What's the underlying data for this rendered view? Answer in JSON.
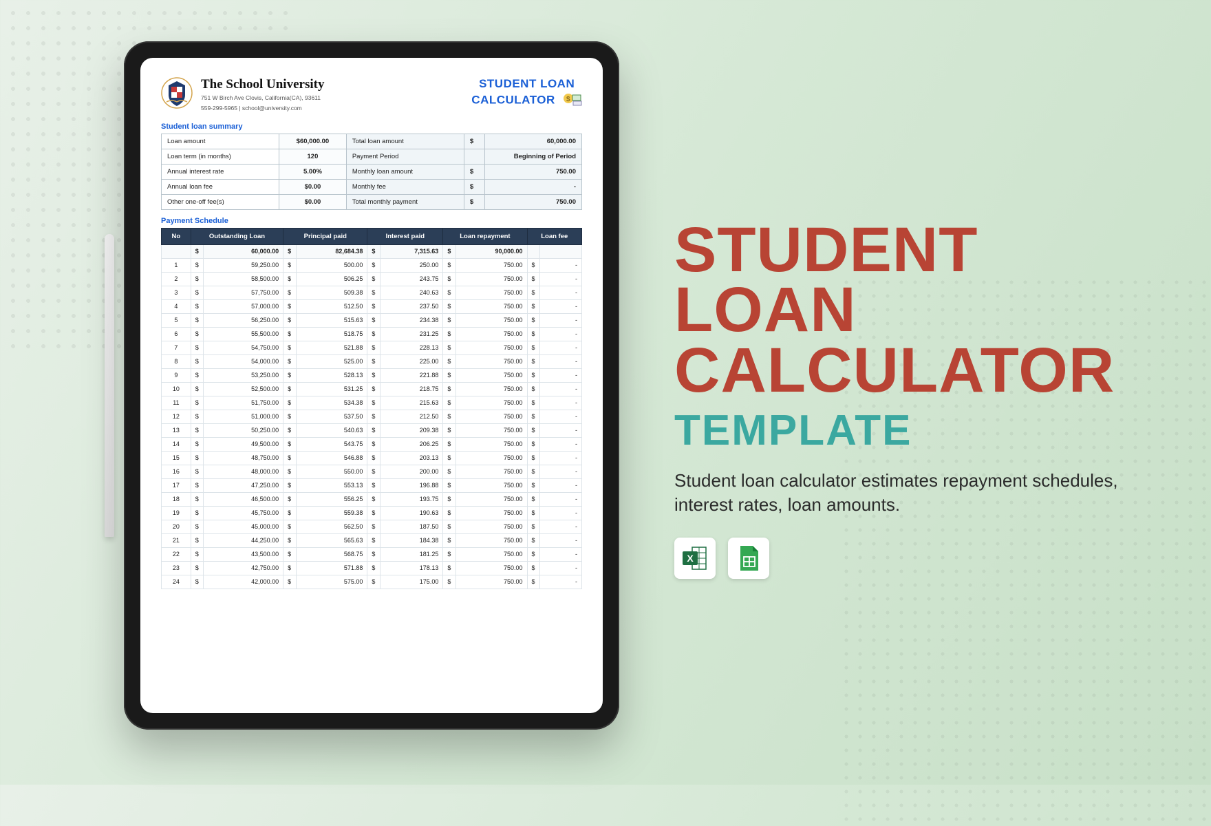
{
  "marketing": {
    "title_line1": "STUDENT LOAN",
    "title_line2": "CALCULATOR",
    "subtitle": "TEMPLATE",
    "description": "Student loan calculator estimates repayment schedules, interest rates, loan amounts.",
    "title_color": "#b84434",
    "subtitle_color": "#3ba8a0",
    "desc_color": "#2b2b2b",
    "icons": [
      "excel",
      "google-sheets"
    ]
  },
  "document": {
    "school_name": "The School University",
    "address": "751 W Birch Ave Clovis, California(CA), 93611",
    "contact": "559-299-5965 | school@university.com",
    "title": "STUDENT LOAN CALCULATOR",
    "sections": {
      "summary_title": "Student loan summary",
      "schedule_title": "Payment Schedule"
    },
    "summary": {
      "left": [
        {
          "label": "Loan amount",
          "value": "$60,000.00"
        },
        {
          "label": "Loan term (in months)",
          "value": "120"
        },
        {
          "label": "Annual interest rate",
          "value": "5.00%"
        },
        {
          "label": "Annual loan fee",
          "value": "$0.00"
        },
        {
          "label": "Other one-off fee(s)",
          "value": "$0.00"
        }
      ],
      "right": [
        {
          "label": "Total loan amount",
          "cur": "$",
          "value": "60,000.00"
        },
        {
          "label": "Payment Period",
          "cur": "",
          "value": "Beginning of Period"
        },
        {
          "label": "Monthly loan amount",
          "cur": "$",
          "value": "750.00"
        },
        {
          "label": "Monthly fee",
          "cur": "$",
          "value": "-"
        },
        {
          "label": "Total monthly payment",
          "cur": "$",
          "value": "750.00"
        }
      ]
    },
    "schedule": {
      "columns": [
        "No",
        "Outstanding Loan",
        "Principal paid",
        "Interest paid",
        "Loan repayment",
        "Loan fee"
      ],
      "col_widths_pct": [
        7,
        22,
        20,
        18,
        20,
        13
      ],
      "header_bg": "#2b3e57",
      "header_fg": "#ffffff",
      "totals": {
        "outstanding": "60,000.00",
        "principal": "82,684.38",
        "interest": "7,315.63",
        "repayment": "90,000.00",
        "fee": ""
      },
      "rows": [
        {
          "no": 1,
          "out": "59,250.00",
          "prin": "500.00",
          "int": "250.00",
          "rep": "750.00",
          "fee": "-"
        },
        {
          "no": 2,
          "out": "58,500.00",
          "prin": "506.25",
          "int": "243.75",
          "rep": "750.00",
          "fee": "-"
        },
        {
          "no": 3,
          "out": "57,750.00",
          "prin": "509.38",
          "int": "240.63",
          "rep": "750.00",
          "fee": "-"
        },
        {
          "no": 4,
          "out": "57,000.00",
          "prin": "512.50",
          "int": "237.50",
          "rep": "750.00",
          "fee": "-"
        },
        {
          "no": 5,
          "out": "56,250.00",
          "prin": "515.63",
          "int": "234.38",
          "rep": "750.00",
          "fee": "-"
        },
        {
          "no": 6,
          "out": "55,500.00",
          "prin": "518.75",
          "int": "231.25",
          "rep": "750.00",
          "fee": "-"
        },
        {
          "no": 7,
          "out": "54,750.00",
          "prin": "521.88",
          "int": "228.13",
          "rep": "750.00",
          "fee": "-"
        },
        {
          "no": 8,
          "out": "54,000.00",
          "prin": "525.00",
          "int": "225.00",
          "rep": "750.00",
          "fee": "-"
        },
        {
          "no": 9,
          "out": "53,250.00",
          "prin": "528.13",
          "int": "221.88",
          "rep": "750.00",
          "fee": "-"
        },
        {
          "no": 10,
          "out": "52,500.00",
          "prin": "531.25",
          "int": "218.75",
          "rep": "750.00",
          "fee": "-"
        },
        {
          "no": 11,
          "out": "51,750.00",
          "prin": "534.38",
          "int": "215.63",
          "rep": "750.00",
          "fee": "-"
        },
        {
          "no": 12,
          "out": "51,000.00",
          "prin": "537.50",
          "int": "212.50",
          "rep": "750.00",
          "fee": "-"
        },
        {
          "no": 13,
          "out": "50,250.00",
          "prin": "540.63",
          "int": "209.38",
          "rep": "750.00",
          "fee": "-"
        },
        {
          "no": 14,
          "out": "49,500.00",
          "prin": "543.75",
          "int": "206.25",
          "rep": "750.00",
          "fee": "-"
        },
        {
          "no": 15,
          "out": "48,750.00",
          "prin": "546.88",
          "int": "203.13",
          "rep": "750.00",
          "fee": "-"
        },
        {
          "no": 16,
          "out": "48,000.00",
          "prin": "550.00",
          "int": "200.00",
          "rep": "750.00",
          "fee": "-"
        },
        {
          "no": 17,
          "out": "47,250.00",
          "prin": "553.13",
          "int": "196.88",
          "rep": "750.00",
          "fee": "-"
        },
        {
          "no": 18,
          "out": "46,500.00",
          "prin": "556.25",
          "int": "193.75",
          "rep": "750.00",
          "fee": "-"
        },
        {
          "no": 19,
          "out": "45,750.00",
          "prin": "559.38",
          "int": "190.63",
          "rep": "750.00",
          "fee": "-"
        },
        {
          "no": 20,
          "out": "45,000.00",
          "prin": "562.50",
          "int": "187.50",
          "rep": "750.00",
          "fee": "-"
        },
        {
          "no": 21,
          "out": "44,250.00",
          "prin": "565.63",
          "int": "184.38",
          "rep": "750.00",
          "fee": "-"
        },
        {
          "no": 22,
          "out": "43,500.00",
          "prin": "568.75",
          "int": "181.25",
          "rep": "750.00",
          "fee": "-"
        },
        {
          "no": 23,
          "out": "42,750.00",
          "prin": "571.88",
          "int": "178.13",
          "rep": "750.00",
          "fee": "-"
        },
        {
          "no": 24,
          "out": "42,000.00",
          "prin": "575.00",
          "int": "175.00",
          "rep": "750.00",
          "fee": "-"
        }
      ]
    }
  },
  "colors": {
    "background_gradient": [
      "#e8f0e8",
      "#d5e8d5",
      "#c8e0c8"
    ],
    "tablet_frame": "#1a1a1a",
    "accent_blue": "#1a5fd6",
    "table_header": "#2b3e57"
  }
}
